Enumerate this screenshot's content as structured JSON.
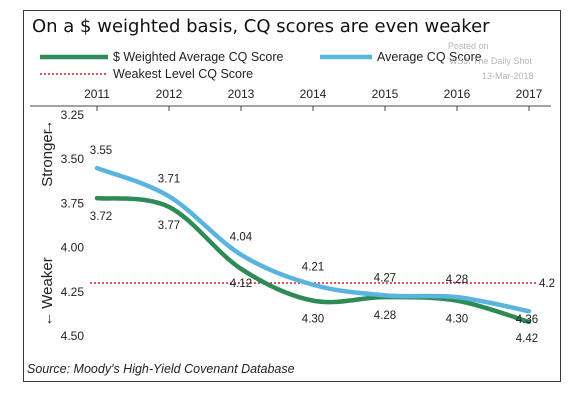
{
  "chart_data": {
    "type": "line",
    "title": "On a $ weighted basis, CQ scores are even weaker",
    "x": [
      2011,
      2012,
      2013,
      2014,
      2015,
      2016,
      2017
    ],
    "x_tick_labels": [
      "2011",
      "2012",
      "2013",
      "2014",
      "2015",
      "2016",
      "2017"
    ],
    "y_tick_labels": [
      "3.25",
      "3.50",
      "3.75",
      "4.00",
      "4.25",
      "4.50"
    ],
    "ylim": [
      3.25,
      4.5
    ],
    "y_inverted": true,
    "ylabel_top": "Stronger",
    "ylabel_bottom": "Weaker",
    "series": [
      {
        "name": "$ Weighted Average CQ Score",
        "color": "#2e8b57",
        "values": [
          3.72,
          3.77,
          4.12,
          4.3,
          4.28,
          4.3,
          4.42
        ],
        "labels": [
          "3.72",
          "3.77",
          "4.12",
          "4.30",
          "4.28",
          "4.30",
          "4.42"
        ]
      },
      {
        "name": "Average CQ Score",
        "color": "#5ab4e0",
        "values": [
          3.55,
          3.71,
          4.04,
          4.21,
          4.27,
          4.28,
          4.36
        ],
        "labels": [
          "3.55",
          "3.71",
          "4.04",
          "4.21",
          "4.27",
          "4.28",
          "4.36"
        ]
      }
    ],
    "reference_line": {
      "name": "Weakest Level CQ Score",
      "value": 4.2,
      "label": "4.2",
      "color": "#cc2222"
    },
    "legend_position": "top",
    "source": "Source: Moody's High-Yield Covenant Database"
  },
  "watermark": {
    "line1": "Posted on",
    "line2": "WSJ. The Daily Shot",
    "line3": "13-Mar-2018"
  }
}
